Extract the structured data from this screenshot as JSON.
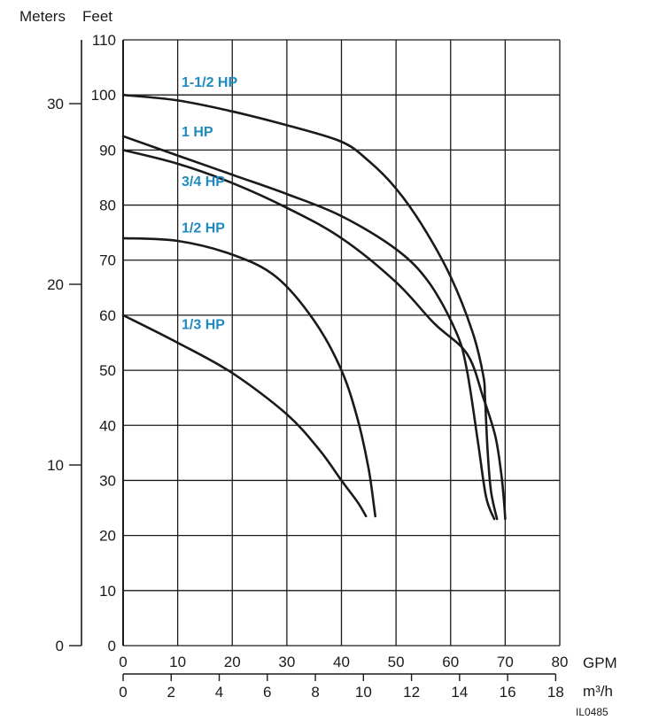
{
  "chart_data": {
    "type": "line",
    "title": "",
    "header_left": "Meters",
    "header_right": "Feet",
    "x_unit_gpm": "GPM",
    "x_unit_m3h": "m³/h",
    "figure_id": "IL0485",
    "xlim_gpm": [
      0,
      80
    ],
    "ylim_feet": [
      0,
      110
    ],
    "ylim_meters": [
      0,
      33.53
    ],
    "grid": true,
    "x_ticks_gpm": [
      "0",
      "10",
      "20",
      "30",
      "40",
      "50",
      "60",
      "70",
      "80"
    ],
    "x_ticks_m3h": [
      "0",
      "2",
      "4",
      "6",
      "8",
      "10",
      "12",
      "14",
      "16",
      "18"
    ],
    "y_ticks_feet": [
      "0",
      "10",
      "20",
      "30",
      "40",
      "50",
      "60",
      "70",
      "80",
      "90",
      "100",
      "110"
    ],
    "y_ticks_meters": [
      "0",
      "10",
      "20",
      "30"
    ],
    "series": [
      {
        "name": "1-1/2 HP",
        "color": "#1a1a1a",
        "label_color": "#1f8ac0",
        "points": [
          [
            0,
            100
          ],
          [
            10,
            99
          ],
          [
            20,
            97
          ],
          [
            30,
            94.5
          ],
          [
            40,
            91.5
          ],
          [
            45,
            88
          ],
          [
            50,
            83
          ],
          [
            55,
            76
          ],
          [
            60,
            67
          ],
          [
            64,
            57
          ],
          [
            66,
            49
          ],
          [
            66.3,
            45
          ],
          [
            66.8,
            35
          ],
          [
            67.4,
            28
          ],
          [
            68.5,
            23
          ]
        ]
      },
      {
        "name": "1 HP",
        "color": "#1a1a1a",
        "label_color": "#1f8ac0",
        "points": [
          [
            0,
            92.5
          ],
          [
            10,
            89
          ],
          [
            20,
            85.5
          ],
          [
            30,
            82
          ],
          [
            40,
            78
          ],
          [
            50,
            72
          ],
          [
            56,
            66
          ],
          [
            61,
            57
          ],
          [
            63,
            50
          ],
          [
            65,
            37
          ],
          [
            66.5,
            27
          ],
          [
            68,
            23
          ]
        ]
      },
      {
        "name": "3/4 HP",
        "color": "#1a1a1a",
        "label_color": "#1f8ac0",
        "points": [
          [
            0,
            90
          ],
          [
            10,
            87.5
          ],
          [
            20,
            84
          ],
          [
            30,
            79.5
          ],
          [
            40,
            74
          ],
          [
            50,
            66
          ],
          [
            57,
            58.5
          ],
          [
            63,
            53
          ],
          [
            66,
            45
          ],
          [
            68.2,
            38
          ],
          [
            69.3,
            31
          ],
          [
            69.8,
            26
          ],
          [
            70,
            23
          ]
        ]
      },
      {
        "name": "1/2 HP",
        "color": "#1a1a1a",
        "label_color": "#1f8ac0",
        "points": [
          [
            0,
            74
          ],
          [
            10,
            73.5
          ],
          [
            20,
            71
          ],
          [
            28,
            67
          ],
          [
            35,
            59
          ],
          [
            40,
            50
          ],
          [
            43,
            41
          ],
          [
            45,
            32
          ],
          [
            46,
            25
          ],
          [
            46.2,
            23.5
          ]
        ]
      },
      {
        "name": "1/3 HP",
        "color": "#1a1a1a",
        "label_color": "#1f8ac0",
        "points": [
          [
            0,
            60
          ],
          [
            10,
            55
          ],
          [
            20,
            49.5
          ],
          [
            30,
            42
          ],
          [
            36,
            35.5
          ],
          [
            40,
            30
          ],
          [
            43,
            26
          ],
          [
            44.5,
            23.5
          ]
        ]
      }
    ]
  }
}
